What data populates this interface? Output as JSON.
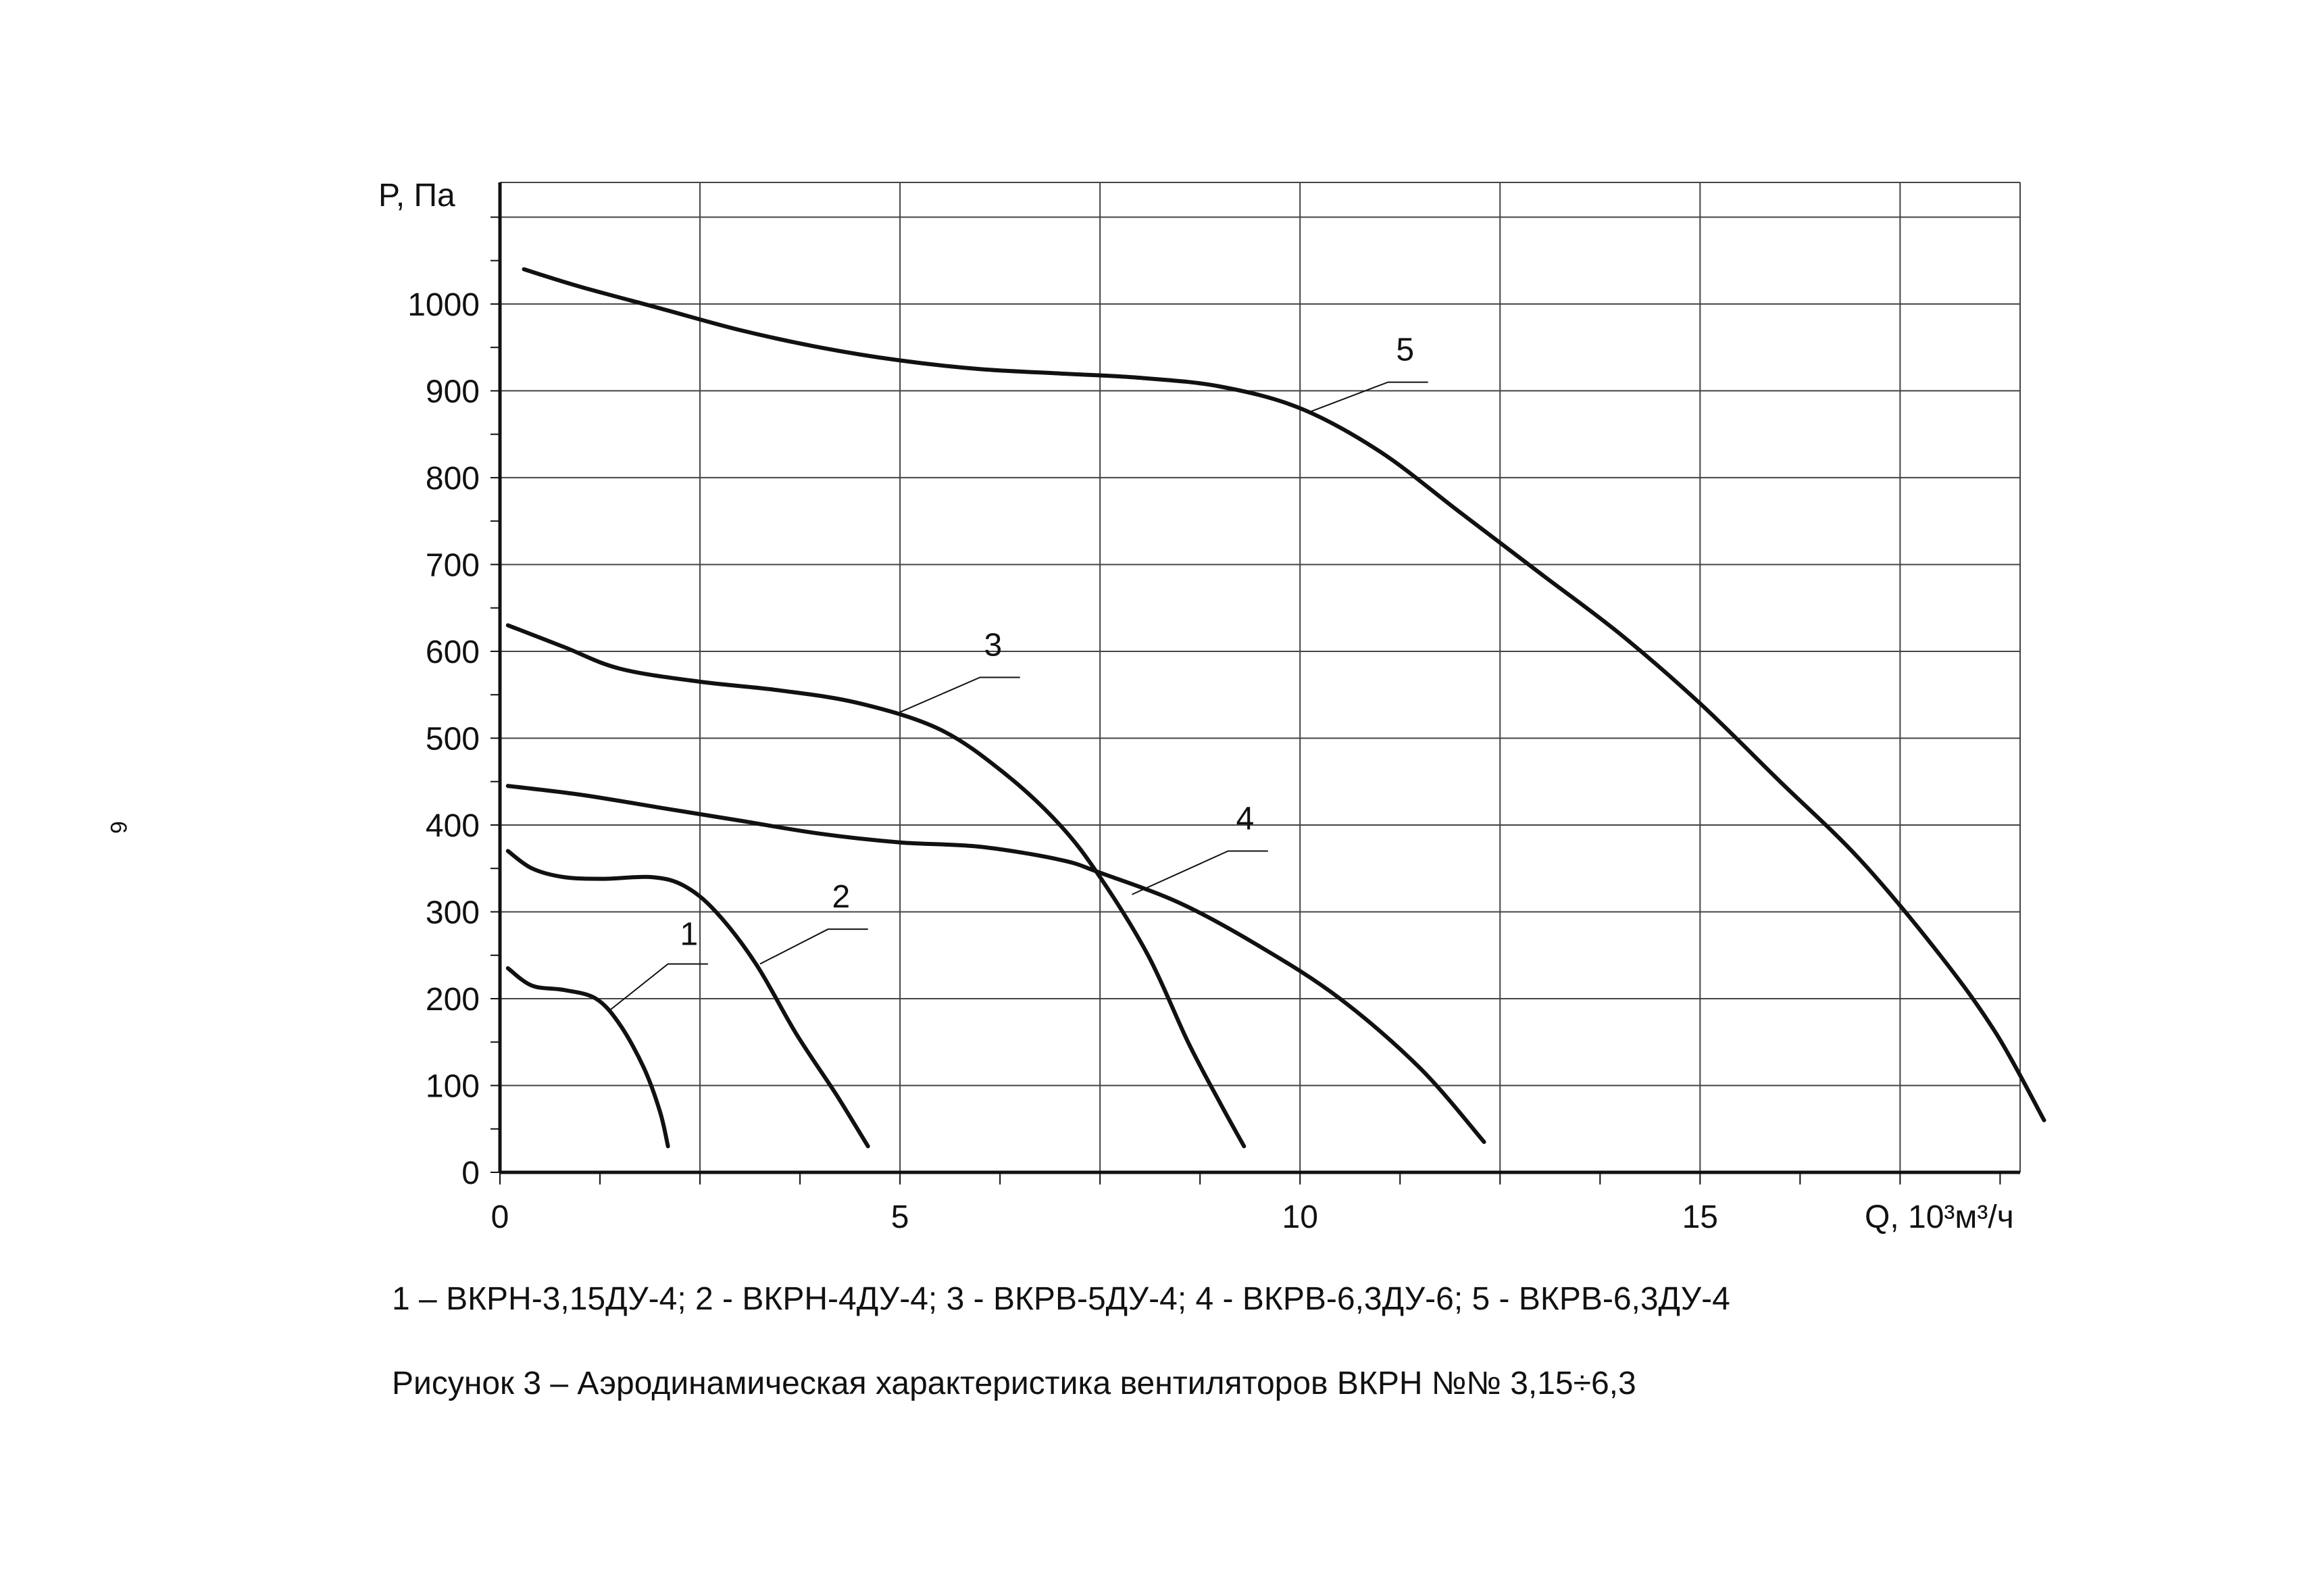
{
  "page_number": "6",
  "legend_text": "1 – ВКРН-3,15ДУ-4; 2 - ВКРН-4ДУ-4; 3 - ВКРВ-5ДУ-4; 4 - ВКРВ-6,3ДУ-6; 5 - ВКРВ-6,3ДУ-4",
  "caption_text": "Рисунок 3 – Аэродинамическая характеристика вентиляторов ВКРН №№ 3,15÷6,3",
  "colors": {
    "ink": "#111111",
    "grid": "#444444",
    "background": "#ffffff"
  },
  "chart_data": {
    "type": "line",
    "title": "",
    "xlabel": "Q, 10³м³/ч",
    "ylabel": "P, Па",
    "xlim": [
      0,
      19
    ],
    "ylim": [
      0,
      1140
    ],
    "x_ticks": [
      0,
      5,
      10,
      15
    ],
    "y_ticks": [
      0,
      100,
      200,
      300,
      400,
      500,
      600,
      700,
      800,
      900,
      1000
    ],
    "x_tick_labels": [
      "0",
      "5",
      "10",
      "15"
    ],
    "y_tick_labels": [
      "0",
      "100",
      "200",
      "300",
      "400",
      "500",
      "600",
      "700",
      "800",
      "900",
      "1000"
    ],
    "grid": true,
    "series": [
      {
        "name": "1",
        "points": [
          [
            0.1,
            235
          ],
          [
            0.4,
            215
          ],
          [
            0.8,
            210
          ],
          [
            1.2,
            200
          ],
          [
            1.5,
            170
          ],
          [
            1.8,
            120
          ],
          [
            2.0,
            70
          ],
          [
            2.1,
            30
          ]
        ]
      },
      {
        "name": "2",
        "points": [
          [
            0.1,
            370
          ],
          [
            0.4,
            350
          ],
          [
            0.8,
            340
          ],
          [
            1.3,
            338
          ],
          [
            1.9,
            340
          ],
          [
            2.3,
            330
          ],
          [
            2.7,
            300
          ],
          [
            3.2,
            240
          ],
          [
            3.7,
            160
          ],
          [
            4.2,
            90
          ],
          [
            4.6,
            30
          ]
        ]
      },
      {
        "name": "3",
        "points": [
          [
            0.1,
            630
          ],
          [
            0.8,
            605
          ],
          [
            1.5,
            580
          ],
          [
            2.5,
            565
          ],
          [
            3.5,
            555
          ],
          [
            4.5,
            540
          ],
          [
            5.5,
            510
          ],
          [
            6.3,
            460
          ],
          [
            7.0,
            400
          ],
          [
            7.5,
            340
          ],
          [
            8.1,
            250
          ],
          [
            8.6,
            150
          ],
          [
            9.0,
            80
          ],
          [
            9.3,
            30
          ]
        ]
      },
      {
        "name": "4",
        "points": [
          [
            0.1,
            445
          ],
          [
            1.0,
            435
          ],
          [
            2.0,
            420
          ],
          [
            3.0,
            405
          ],
          [
            4.0,
            390
          ],
          [
            5.0,
            380
          ],
          [
            6.0,
            375
          ],
          [
            7.0,
            360
          ],
          [
            7.5,
            345
          ],
          [
            8.5,
            310
          ],
          [
            9.5,
            260
          ],
          [
            10.5,
            200
          ],
          [
            11.5,
            120
          ],
          [
            12.3,
            35
          ]
        ]
      },
      {
        "name": "5",
        "points": [
          [
            0.3,
            1040
          ],
          [
            1.0,
            1020
          ],
          [
            2.0,
            995
          ],
          [
            3.0,
            970
          ],
          [
            4.0,
            950
          ],
          [
            5.0,
            935
          ],
          [
            6.0,
            925
          ],
          [
            7.0,
            920
          ],
          [
            8.0,
            915
          ],
          [
            9.0,
            905
          ],
          [
            10.0,
            880
          ],
          [
            11.0,
            830
          ],
          [
            12.0,
            760
          ],
          [
            13.0,
            690
          ],
          [
            14.0,
            620
          ],
          [
            15.0,
            540
          ],
          [
            16.0,
            450
          ],
          [
            17.0,
            360
          ],
          [
            18.0,
            250
          ],
          [
            18.7,
            160
          ],
          [
            19.3,
            60
          ]
        ]
      }
    ],
    "annotations": [
      {
        "text": "1",
        "series": "1"
      },
      {
        "text": "2",
        "series": "2"
      },
      {
        "text": "3",
        "series": "3"
      },
      {
        "text": "4",
        "series": "4"
      },
      {
        "text": "5",
        "series": "5"
      }
    ]
  }
}
